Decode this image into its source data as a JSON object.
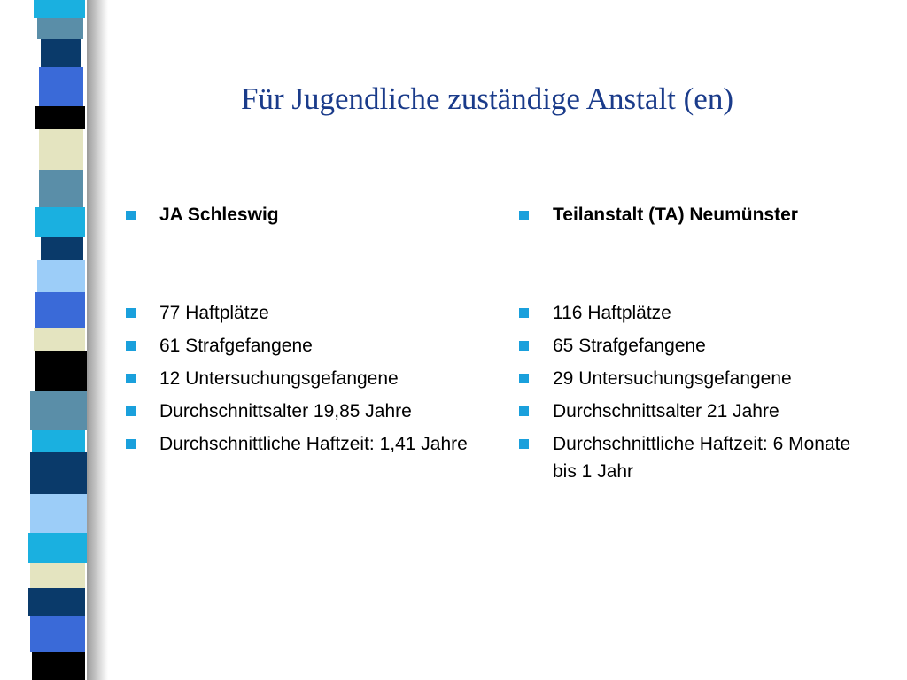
{
  "title": "Für Jugendliche zuständige Anstalt (en)",
  "colors": {
    "title": "#1a3b8a",
    "bullet": "#1aa0dc",
    "stripe_palette": [
      "#1ab0e0",
      "#5a8ea8",
      "#0a3a6a",
      "#3a6ad8",
      "#000000",
      "#e4e4c0",
      "#9ccdf8"
    ]
  },
  "icons": {
    "bullet": "square-bullet-icon"
  },
  "columns": [
    {
      "heading": "JA Schleswig",
      "items": [
        "77 Haftplätze",
        "61 Strafgefangene",
        "12 Untersuchungsgefangene",
        "Durchschnittsalter 19,85 Jahre",
        "Durchschnittliche Haftzeit: 1,41 Jahre"
      ]
    },
    {
      "heading": "Teilanstalt (TA) Neumünster",
      "items": [
        "116 Haftplätze",
        "65 Strafgefangene",
        "29 Untersuchungsgefangene",
        "Durchschnittsalter 21 Jahre",
        "Durchschnittliche Haftzeit: 6 Monate bis 1 Jahr"
      ]
    }
  ]
}
